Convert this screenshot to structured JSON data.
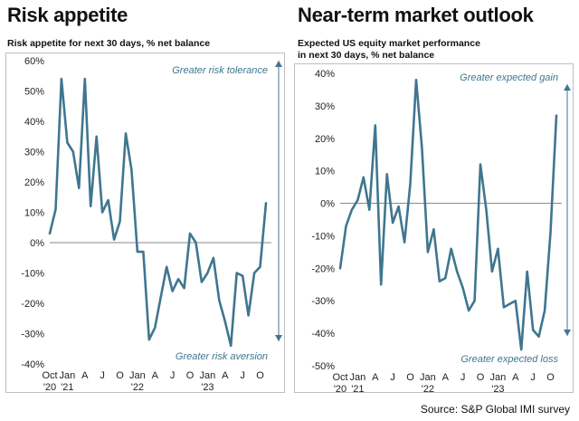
{
  "source": "Source: S&P Global IMI survey",
  "chart_data": [
    {
      "type": "line",
      "panel_title": "Risk appetite",
      "subtitle": [
        "Risk appetite for next 30 days, % net balance"
      ],
      "y_ticks": [
        "60%",
        "50%",
        "40%",
        "30%",
        "20%",
        "10%",
        "0%",
        "-10%",
        "-20%",
        "-30%",
        "-40%"
      ],
      "ylim": [
        -40,
        60
      ],
      "x_month_ticks": [
        "Oct",
        "Jan",
        "A",
        "J",
        "O",
        "Jan",
        "A",
        "J",
        "O",
        "Jan",
        "A",
        "J",
        "O"
      ],
      "x_year_ticks": [
        "'20",
        "'21",
        "'22",
        "'23"
      ],
      "annotation_top": "Greater risk tolerance",
      "annotation_bottom": "Greater risk aversion",
      "x": [
        "2020-10",
        "2020-11",
        "2020-12",
        "2021-01",
        "2021-02",
        "2021-03",
        "2021-04",
        "2021-05",
        "2021-06",
        "2021-07",
        "2021-08",
        "2021-09",
        "2021-10",
        "2021-11",
        "2021-12",
        "2022-01",
        "2022-02",
        "2022-03",
        "2022-04",
        "2022-05",
        "2022-06",
        "2022-07",
        "2022-08",
        "2022-09",
        "2022-10",
        "2022-11",
        "2022-12",
        "2023-01",
        "2023-02",
        "2023-03",
        "2023-04",
        "2023-05",
        "2023-06",
        "2023-07",
        "2023-08",
        "2023-09",
        "2023-10",
        "2023-11"
      ],
      "values": [
        3,
        11,
        54,
        33,
        30,
        18,
        54,
        12,
        35,
        10,
        14,
        1,
        7,
        36,
        24,
        -3,
        -3,
        -32,
        -28,
        -18,
        -8,
        -16,
        -12,
        -15,
        3,
        0,
        -13,
        -10,
        -5,
        -19,
        -26,
        -34,
        -10,
        -11,
        -24,
        -10,
        -8,
        13
      ],
      "line_color": "#3f7690"
    },
    {
      "type": "line",
      "panel_title": "Near-term market outlook",
      "subtitle": [
        "Expected US equity market performance",
        "in next 30 days, % net balance"
      ],
      "y_ticks": [
        "40%",
        "30%",
        "20%",
        "10%",
        "0%",
        "-10%",
        "-20%",
        "-30%",
        "-40%",
        "-50%"
      ],
      "ylim": [
        -50,
        40
      ],
      "x_month_ticks": [
        "Oct",
        "Jan",
        "A",
        "J",
        "O",
        "Jan",
        "A",
        "J",
        "O",
        "Jan",
        "A",
        "J",
        "O"
      ],
      "x_year_ticks": [
        "'20",
        "'21",
        "'22",
        "'23"
      ],
      "annotation_top": "Greater expected gain",
      "annotation_bottom": "Greater expected loss",
      "x": [
        "2020-10",
        "2020-11",
        "2020-12",
        "2021-01",
        "2021-02",
        "2021-03",
        "2021-04",
        "2021-05",
        "2021-06",
        "2021-07",
        "2021-08",
        "2021-09",
        "2021-10",
        "2021-11",
        "2021-12",
        "2022-01",
        "2022-02",
        "2022-03",
        "2022-04",
        "2022-05",
        "2022-06",
        "2022-07",
        "2022-08",
        "2022-09",
        "2022-10",
        "2022-11",
        "2022-12",
        "2023-01",
        "2023-02",
        "2023-03",
        "2023-04",
        "2023-05",
        "2023-06",
        "2023-07",
        "2023-08",
        "2023-09",
        "2023-10",
        "2023-11"
      ],
      "values": [
        -20,
        -7,
        -2,
        1,
        8,
        -2,
        24,
        -25,
        9,
        -6,
        -1,
        -12,
        6,
        38,
        17,
        -15,
        -8,
        -24,
        -23,
        -14,
        -21,
        -26,
        -33,
        -30,
        12,
        -2,
        -21,
        -14,
        -32,
        -31,
        -30,
        -45,
        -21,
        -39,
        -41,
        -33,
        -9,
        27
      ],
      "line_color": "#3f7690"
    }
  ]
}
